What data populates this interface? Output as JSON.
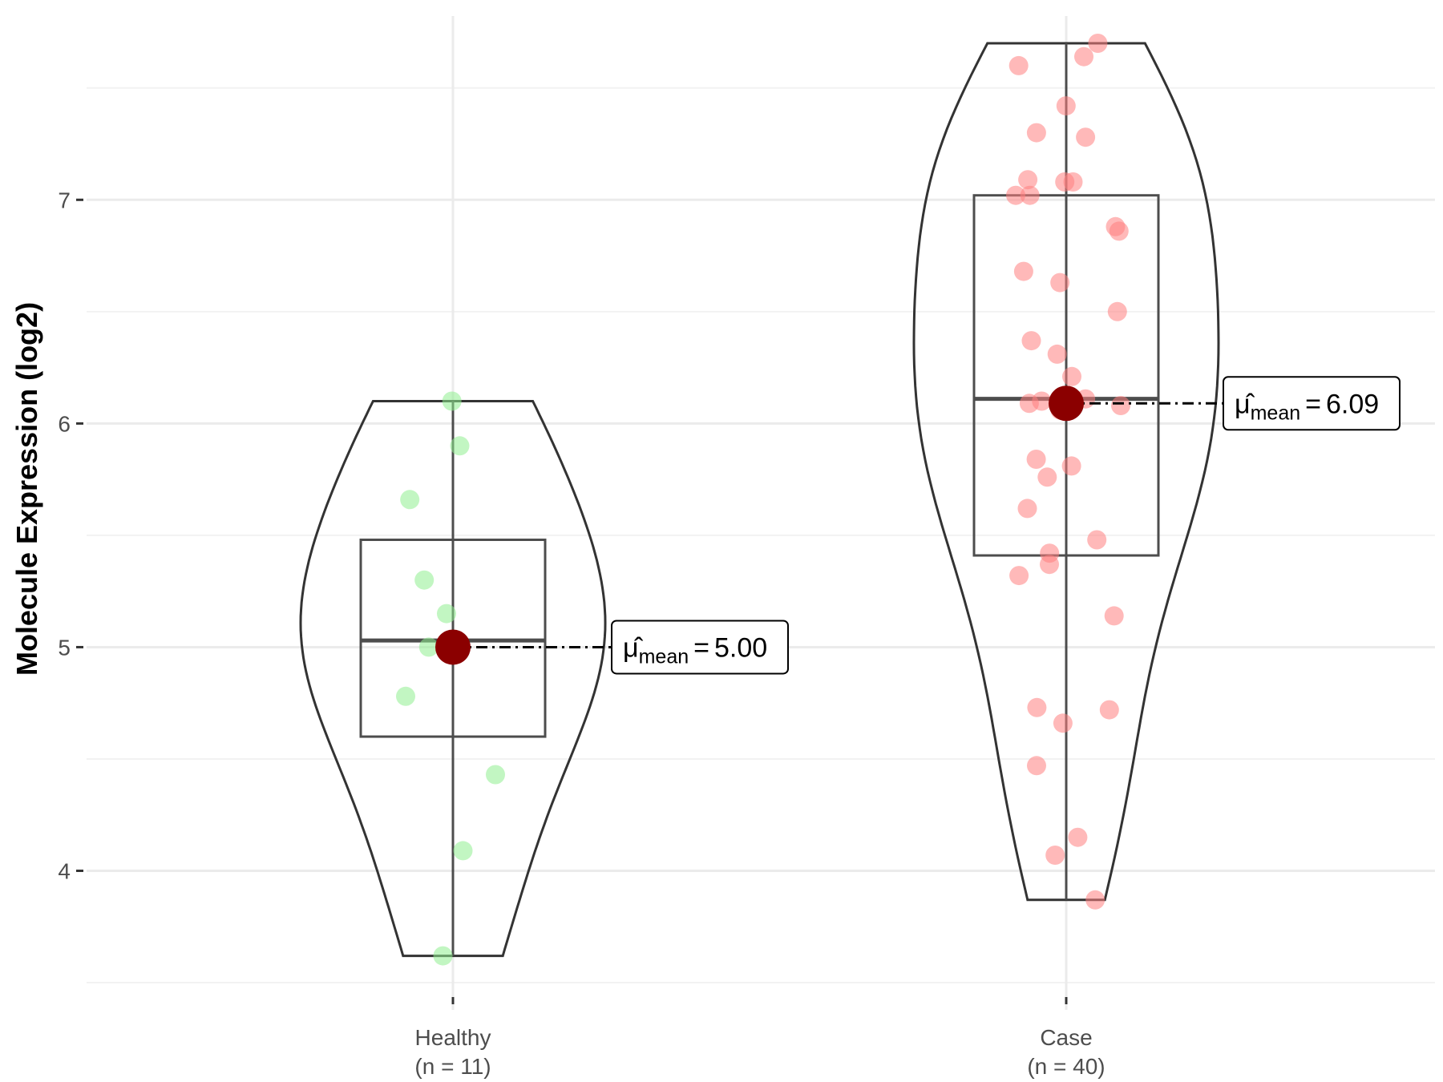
{
  "chart_data": {
    "type": "violin",
    "ylabel": "Molecule Expression (log2)",
    "xlabel": "",
    "ylim": [
      3.45,
      7.75
    ],
    "yticks": [
      4,
      5,
      6,
      7
    ],
    "grid": true,
    "groups": [
      {
        "label": "Healthy",
        "n_label": "(n = 11)",
        "color": "#90ee90",
        "points": [
          6.1,
          5.9,
          5.66,
          5.3,
          5.15,
          5.01,
          4.78,
          4.43,
          4.09,
          3.62,
          5.0
        ],
        "box": {
          "q1": 4.6,
          "median": 5.03,
          "q3": 5.48,
          "min": 3.62,
          "max": 6.1
        },
        "mean": 5.0,
        "mean_label": "5.00"
      },
      {
        "label": "Case",
        "n_label": "(n = 40)",
        "color": "#ff7f7f",
        "points": [
          7.7,
          7.64,
          7.6,
          7.42,
          7.3,
          7.28,
          7.09,
          7.08,
          7.08,
          7.02,
          7.02,
          6.88,
          6.86,
          6.68,
          6.63,
          6.5,
          6.37,
          6.31,
          6.21,
          6.11,
          6.1,
          6.09,
          6.08,
          6.06,
          5.84,
          5.81,
          5.76,
          5.62,
          5.48,
          5.42,
          5.37,
          5.32,
          5.14,
          4.73,
          4.72,
          4.66,
          4.47,
          4.15,
          4.07,
          3.87
        ],
        "box": {
          "q1": 5.41,
          "median": 6.11,
          "q3": 7.02,
          "min": 3.87,
          "max": 7.7
        },
        "mean": 6.09,
        "mean_label": "6.09"
      }
    ],
    "mean_symbol": "μ̂",
    "mean_subscript": "mean",
    "mean_equals": "=",
    "mean_point_color": "#8b0000"
  }
}
